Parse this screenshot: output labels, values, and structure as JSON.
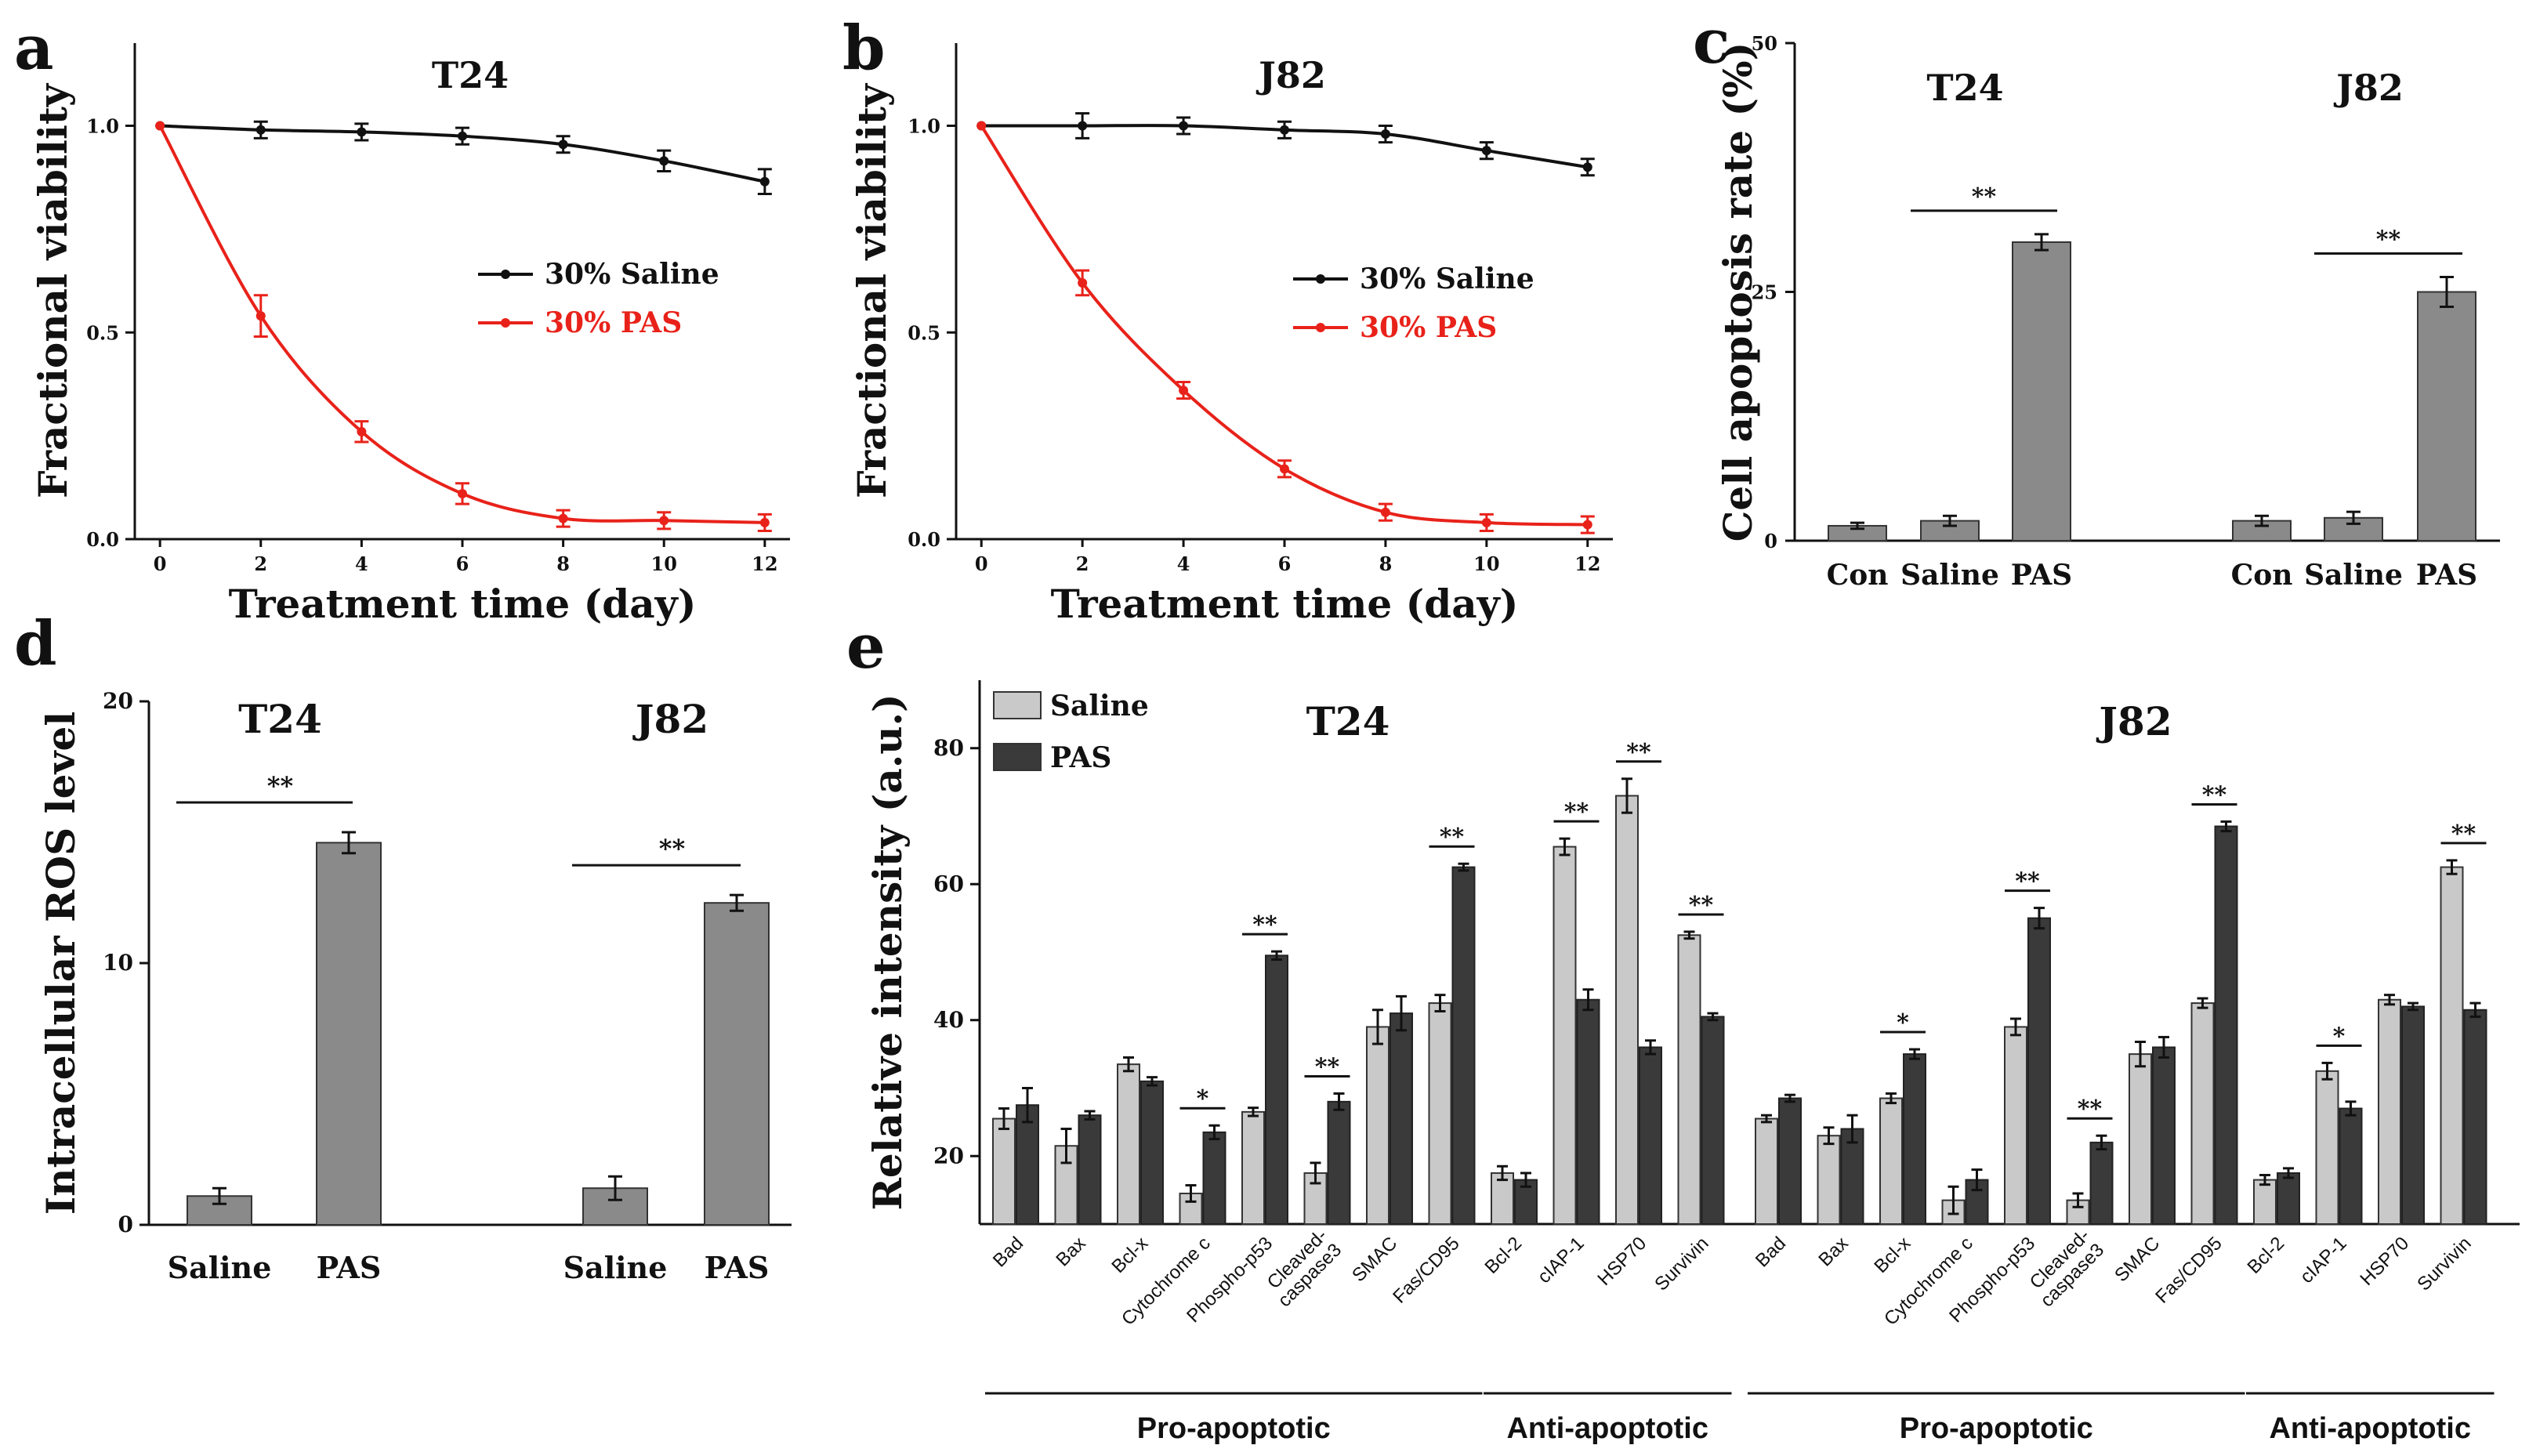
{
  "colors": {
    "black_series": "#111111",
    "red_series": "#e8221a",
    "bar_gray": "#8a8a8a",
    "bar_light": "#c9c9c9",
    "bar_dark": "#3a3a3a"
  },
  "chart_data": [
    {
      "id": "a",
      "panel_label": "a",
      "type": "line",
      "title": "T24",
      "xlabel": "Treatment time (day)",
      "ylabel": "Fractional viability",
      "xlim": [
        -0.5,
        12.5
      ],
      "ylim": [
        0,
        1.2
      ],
      "xticks": [
        0,
        2,
        4,
        6,
        8,
        10,
        12
      ],
      "xtick_labels": [
        "0",
        "2",
        "4",
        "6",
        "8",
        "10",
        "12"
      ],
      "yticks": [
        0,
        0.5,
        1.0
      ],
      "ytick_labels": [
        "0.0",
        "0.5",
        "1.0"
      ],
      "series": [
        {
          "name": "30% Saline",
          "color": "black",
          "x": [
            0,
            2,
            4,
            6,
            8,
            10,
            12
          ],
          "y": [
            1.0,
            0.99,
            0.985,
            0.975,
            0.955,
            0.915,
            0.865
          ],
          "err": [
            0,
            0.02,
            0.02,
            0.02,
            0.02,
            0.025,
            0.03
          ]
        },
        {
          "name": "30% PAS",
          "color": "red",
          "x": [
            0,
            2,
            4,
            6,
            8,
            10,
            12
          ],
          "y": [
            1.0,
            0.54,
            0.26,
            0.11,
            0.05,
            0.045,
            0.04
          ],
          "err": [
            0,
            0.05,
            0.025,
            0.025,
            0.02,
            0.02,
            0.02
          ]
        }
      ]
    },
    {
      "id": "b",
      "panel_label": "b",
      "type": "line",
      "title": "J82",
      "xlabel": "Treatment time (day)",
      "ylabel": "Fractional viability",
      "xlim": [
        -0.5,
        12.5
      ],
      "ylim": [
        0,
        1.2
      ],
      "xticks": [
        0,
        2,
        4,
        6,
        8,
        10,
        12
      ],
      "xtick_labels": [
        "0",
        "2",
        "4",
        "6",
        "8",
        "10",
        "12"
      ],
      "yticks": [
        0,
        0.5,
        1.0
      ],
      "ytick_labels": [
        "0.0",
        "0.5",
        "1.0"
      ],
      "series": [
        {
          "name": "30% Saline",
          "color": "black",
          "x": [
            0,
            2,
            4,
            6,
            8,
            10,
            12
          ],
          "y": [
            1.0,
            1.0,
            1.0,
            0.99,
            0.98,
            0.94,
            0.9
          ],
          "err": [
            0,
            0.03,
            0.02,
            0.02,
            0.02,
            0.02,
            0.02
          ]
        },
        {
          "name": "30% PAS",
          "color": "red",
          "x": [
            0,
            2,
            4,
            6,
            8,
            10,
            12
          ],
          "y": [
            1.0,
            0.62,
            0.36,
            0.17,
            0.065,
            0.04,
            0.035
          ],
          "err": [
            0,
            0.03,
            0.02,
            0.02,
            0.02,
            0.02,
            0.02
          ]
        }
      ]
    },
    {
      "id": "c",
      "panel_label": "c",
      "type": "bar",
      "title": "",
      "ylabel": "Cell apoptosis rate (%)",
      "ylim": [
        0,
        50
      ],
      "yticks": [
        0,
        25,
        50
      ],
      "ytick_labels": [
        "0",
        "25",
        "50"
      ],
      "groups": [
        {
          "title": "T24",
          "categories": [
            "Con",
            "Saline",
            "PAS"
          ],
          "values": [
            1.5,
            2.0,
            30.0
          ],
          "err": [
            0.3,
            0.5,
            0.8
          ],
          "sig": "**"
        },
        {
          "title": "J82",
          "categories": [
            "Con",
            "Saline",
            "PAS"
          ],
          "values": [
            2.0,
            2.3,
            25.0
          ],
          "err": [
            0.5,
            0.6,
            1.5
          ],
          "sig": "**"
        }
      ]
    },
    {
      "id": "d",
      "panel_label": "d",
      "type": "bar",
      "title": "",
      "ylabel": "Intracellular ROS level",
      "ylim": [
        0,
        20
      ],
      "yticks": [
        0,
        10,
        20
      ],
      "ytick_labels": [
        "0",
        "10",
        "20"
      ],
      "groups": [
        {
          "title": "T24",
          "categories": [
            "Saline",
            "PAS"
          ],
          "values": [
            1.1,
            14.6
          ],
          "err": [
            0.3,
            0.4
          ],
          "sig": "**"
        },
        {
          "title": "J82",
          "categories": [
            "Saline",
            "PAS"
          ],
          "values": [
            1.4,
            12.3
          ],
          "err": [
            0.45,
            0.3
          ],
          "sig": "**"
        }
      ]
    },
    {
      "id": "e",
      "panel_label": "e",
      "type": "bar",
      "title": "",
      "ylabel": "Relative intensity (a.u.)",
      "ylim": [
        10,
        90
      ],
      "yticks": [
        20,
        40,
        60,
        80
      ],
      "ytick_labels": [
        "20",
        "40",
        "60",
        "80"
      ],
      "legend": [
        "Saline",
        "PAS"
      ],
      "categories": [
        "Bad",
        "Bax",
        "Bcl-x",
        "Cytochrome c",
        "Phospho-p53",
        "Cleaved-\ncaspase3",
        "SMAC",
        "Fas/CD95",
        "Bcl-2",
        "cIAP-1",
        "HSP70",
        "Survivin"
      ],
      "groups_label": [
        {
          "label": "Pro-apoptotic",
          "range": [
            0,
            7
          ]
        },
        {
          "label": "Anti-apoptotic",
          "range": [
            8,
            11
          ]
        }
      ],
      "subcharts": [
        {
          "title": "T24",
          "saline": [
            25.5,
            21.5,
            33.5,
            14.5,
            26.5,
            17.5,
            39,
            42.5,
            17.5,
            65.5,
            73,
            52.5
          ],
          "saline_err": [
            1.5,
            2.5,
            1,
            1.2,
            0.6,
            1.5,
            2.5,
            1.2,
            1,
            1.2,
            2.5,
            0.5
          ],
          "pas": [
            27.5,
            26,
            31,
            23.5,
            49.5,
            28,
            41,
            62.5,
            16.5,
            43,
            36,
            40.5
          ],
          "pas_err": [
            2.5,
            0.6,
            0.6,
            1,
            0.6,
            1.2,
            2.5,
            0.5,
            1,
            1.5,
            1,
            0.5
          ],
          "sig": [
            "",
            "",
            "",
            "*",
            "**",
            "**",
            "",
            "**",
            "",
            "**",
            "**",
            "**"
          ]
        },
        {
          "title": "J82",
          "saline": [
            25.5,
            23,
            28.5,
            13.5,
            39,
            13.5,
            35,
            42.5,
            16.5,
            32.5,
            43,
            62.5
          ],
          "saline_err": [
            0.5,
            1.2,
            0.7,
            2,
            1.2,
            1,
            1.8,
            0.7,
            0.7,
            1.2,
            0.7,
            1
          ],
          "pas": [
            28.5,
            24,
            35,
            16.5,
            55,
            22,
            36,
            68.5,
            17.5,
            27,
            42,
            41.5
          ],
          "pas_err": [
            0.5,
            2,
            0.7,
            1.5,
            1.5,
            1,
            1.5,
            0.7,
            0.7,
            1,
            0.5,
            1
          ],
          "sig": [
            "",
            "",
            "*",
            "",
            "**",
            "**",
            "",
            "**",
            "",
            "*",
            "",
            "**"
          ]
        }
      ]
    }
  ]
}
